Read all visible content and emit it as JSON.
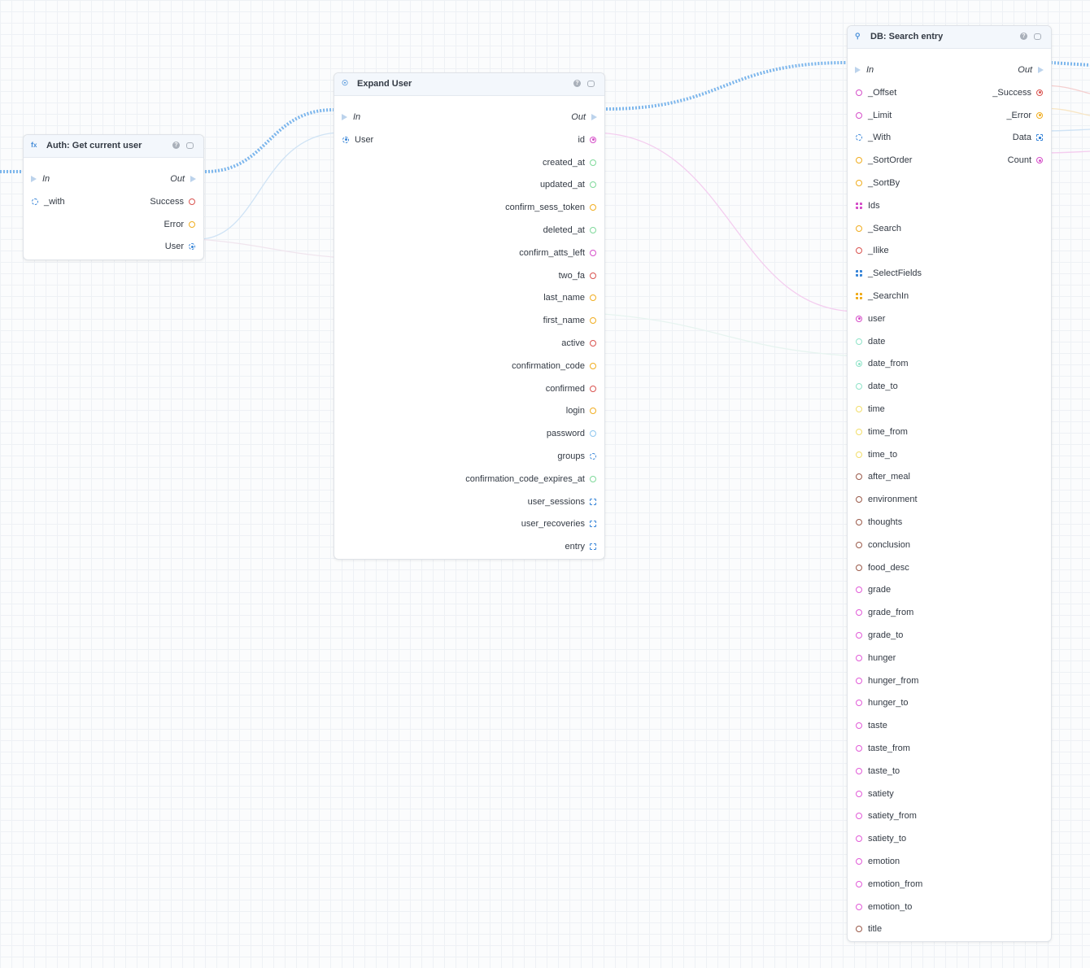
{
  "colors": {
    "flow": "#7cb6ec",
    "red": "#d9534f",
    "orange": "#f0ad1f",
    "green": "#7fd99a",
    "pink": "#d64fc9",
    "blue": "#3a86d8",
    "lightblue": "#8ec6ee",
    "teal": "#8fe3c8",
    "yellow": "#f2de6a",
    "brown": "#9a5a4a",
    "magenta": "#e25bd8"
  },
  "nodes": {
    "auth": {
      "title": "Auth: Get current user",
      "icon": "fx-icon",
      "in_label": "In",
      "out_label": "Out",
      "inputs": [
        {
          "label": "_with",
          "color": "blue",
          "kind": "dashed"
        }
      ],
      "outputs": [
        {
          "label": "Success",
          "color": "red",
          "kind": "ring"
        },
        {
          "label": "Error",
          "color": "orange",
          "kind": "ring"
        },
        {
          "label": "User",
          "color": "blue",
          "kind": "dashed-filled"
        }
      ]
    },
    "expand": {
      "title": "Expand User",
      "icon": "expand-icon",
      "in_label": "In",
      "out_label": "Out",
      "inputs": [
        {
          "label": "User",
          "color": "blue",
          "kind": "dashed-filled"
        }
      ],
      "outputs": [
        {
          "label": "id",
          "color": "pink",
          "kind": "filled"
        },
        {
          "label": "created_at",
          "color": "green",
          "kind": "ring"
        },
        {
          "label": "updated_at",
          "color": "green",
          "kind": "ring"
        },
        {
          "label": "confirm_sess_token",
          "color": "orange",
          "kind": "ring"
        },
        {
          "label": "deleted_at",
          "color": "green",
          "kind": "ring"
        },
        {
          "label": "confirm_atts_left",
          "color": "pink",
          "kind": "ring"
        },
        {
          "label": "two_fa",
          "color": "red",
          "kind": "ring"
        },
        {
          "label": "last_name",
          "color": "orange",
          "kind": "ring"
        },
        {
          "label": "first_name",
          "color": "orange",
          "kind": "ring"
        },
        {
          "label": "active",
          "color": "red",
          "kind": "ring"
        },
        {
          "label": "confirmation_code",
          "color": "orange",
          "kind": "ring"
        },
        {
          "label": "confirmed",
          "color": "red",
          "kind": "ring"
        },
        {
          "label": "login",
          "color": "orange",
          "kind": "ring"
        },
        {
          "label": "password",
          "color": "lightblue",
          "kind": "ring"
        },
        {
          "label": "groups",
          "color": "blue",
          "kind": "dashed"
        },
        {
          "label": "confirmation_code_expires_at",
          "color": "green",
          "kind": "ring"
        },
        {
          "label": "user_sessions",
          "color": "blue",
          "kind": "square"
        },
        {
          "label": "user_recoveries",
          "color": "blue",
          "kind": "square"
        },
        {
          "label": "entry",
          "color": "blue",
          "kind": "square"
        }
      ]
    },
    "search": {
      "title": "DB: Search entry",
      "icon": "search-icon",
      "in_label": "In",
      "out_label": "Out",
      "inputs": [
        {
          "label": "_Offset",
          "color": "pink",
          "kind": "ring"
        },
        {
          "label": "_Limit",
          "color": "pink",
          "kind": "ring"
        },
        {
          "label": "_With",
          "color": "blue",
          "kind": "dashed"
        },
        {
          "label": "_SortOrder",
          "color": "orange",
          "kind": "ring"
        },
        {
          "label": "_SortBy",
          "color": "orange",
          "kind": "ring"
        },
        {
          "label": "Ids",
          "color": "pink",
          "kind": "grid"
        },
        {
          "label": "_Search",
          "color": "orange",
          "kind": "ring"
        },
        {
          "label": "_Ilike",
          "color": "red",
          "kind": "ring"
        },
        {
          "label": "_SelectFields",
          "color": "blue",
          "kind": "grid"
        },
        {
          "label": "_SearchIn",
          "color": "orange",
          "kind": "grid"
        },
        {
          "label": "user",
          "color": "pink",
          "kind": "filled"
        },
        {
          "label": "date",
          "color": "teal",
          "kind": "ring"
        },
        {
          "label": "date_from",
          "color": "teal",
          "kind": "filled"
        },
        {
          "label": "date_to",
          "color": "teal",
          "kind": "ring"
        },
        {
          "label": "time",
          "color": "yellow",
          "kind": "ring"
        },
        {
          "label": "time_from",
          "color": "yellow",
          "kind": "ring"
        },
        {
          "label": "time_to",
          "color": "yellow",
          "kind": "ring"
        },
        {
          "label": "after_meal",
          "color": "brown",
          "kind": "ring"
        },
        {
          "label": "environment",
          "color": "brown",
          "kind": "ring"
        },
        {
          "label": "thoughts",
          "color": "brown",
          "kind": "ring"
        },
        {
          "label": "conclusion",
          "color": "brown",
          "kind": "ring"
        },
        {
          "label": "food_desc",
          "color": "brown",
          "kind": "ring"
        },
        {
          "label": "grade",
          "color": "magenta",
          "kind": "ring"
        },
        {
          "label": "grade_from",
          "color": "magenta",
          "kind": "ring"
        },
        {
          "label": "grade_to",
          "color": "magenta",
          "kind": "ring"
        },
        {
          "label": "hunger",
          "color": "magenta",
          "kind": "ring"
        },
        {
          "label": "hunger_from",
          "color": "magenta",
          "kind": "ring"
        },
        {
          "label": "hunger_to",
          "color": "magenta",
          "kind": "ring"
        },
        {
          "label": "taste",
          "color": "magenta",
          "kind": "ring"
        },
        {
          "label": "taste_from",
          "color": "magenta",
          "kind": "ring"
        },
        {
          "label": "taste_to",
          "color": "magenta",
          "kind": "ring"
        },
        {
          "label": "satiety",
          "color": "magenta",
          "kind": "ring"
        },
        {
          "label": "satiety_from",
          "color": "magenta",
          "kind": "ring"
        },
        {
          "label": "satiety_to",
          "color": "magenta",
          "kind": "ring"
        },
        {
          "label": "emotion",
          "color": "magenta",
          "kind": "ring"
        },
        {
          "label": "emotion_from",
          "color": "magenta",
          "kind": "ring"
        },
        {
          "label": "emotion_to",
          "color": "magenta",
          "kind": "ring"
        },
        {
          "label": "title",
          "color": "brown",
          "kind": "ring"
        }
      ],
      "outputs": [
        {
          "label": "_Success",
          "color": "red",
          "kind": "filled"
        },
        {
          "label": "_Error",
          "color": "orange",
          "kind": "filled"
        },
        {
          "label": "Data",
          "color": "blue",
          "kind": "gridsel"
        },
        {
          "label": "Count",
          "color": "pink",
          "kind": "filled"
        }
      ]
    }
  }
}
